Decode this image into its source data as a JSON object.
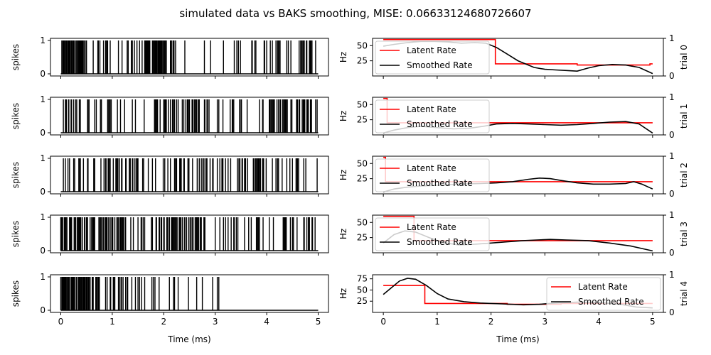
{
  "title": "simulated data vs BAKS smoothing, MISE: 0.06633124680726607",
  "chart_data": {
    "type": "line",
    "title": "simulated data vs BAKS smoothing, MISE: 0.06633124680726607",
    "spikes_ylabel": "spikes",
    "rate_ylabel": "Hz",
    "xlabel": "Time (ms)",
    "xlim": [
      -0.2,
      5.2
    ],
    "xticks": [
      0,
      1,
      2,
      3,
      4,
      5
    ],
    "spike_yticks": [
      0,
      1
    ],
    "legend": [
      "Latent Rate",
      "Smoothed Rate"
    ],
    "colors": {
      "latent": "#ff0000",
      "smoothed": "#000000",
      "spikes": "#000000"
    },
    "trials": [
      {
        "label": "trial 0",
        "twin_yticks": [
          0,
          1
        ],
        "rate_ylim": [
          0,
          62
        ],
        "rate_yticks": [
          25,
          50
        ],
        "legend_loc": "upper left",
        "spike_density": [
          [
            0,
            0.5,
            0.75
          ],
          [
            0.5,
            1.6,
            0.15
          ],
          [
            1.6,
            2.05,
            0.75
          ],
          [
            2.05,
            3.7,
            0.1
          ],
          [
            3.7,
            4.3,
            0.2
          ],
          [
            4.3,
            5,
            0.25
          ]
        ],
        "latent": [
          [
            0,
            60
          ],
          [
            2.08,
            60
          ],
          [
            2.08,
            20
          ],
          [
            3.6,
            20
          ],
          [
            3.6,
            18
          ],
          [
            4.95,
            18
          ],
          [
            4.95,
            20
          ],
          [
            5,
            20
          ]
        ],
        "smoothed": [
          [
            0,
            49
          ],
          [
            0.2,
            52
          ],
          [
            0.45,
            55
          ],
          [
            0.7,
            57
          ],
          [
            0.95,
            57
          ],
          [
            1.2,
            56
          ],
          [
            1.45,
            54
          ],
          [
            1.7,
            55
          ],
          [
            1.9,
            54
          ],
          [
            2.1,
            47
          ],
          [
            2.3,
            36
          ],
          [
            2.5,
            25
          ],
          [
            2.8,
            14
          ],
          [
            3.0,
            11
          ],
          [
            3.2,
            10
          ],
          [
            3.4,
            9
          ],
          [
            3.6,
            8
          ],
          [
            3.8,
            13
          ],
          [
            4.0,
            17
          ],
          [
            4.25,
            19
          ],
          [
            4.5,
            18
          ],
          [
            4.75,
            14
          ],
          [
            5,
            4
          ]
        ]
      },
      {
        "label": "trial 1",
        "twin_yticks": [
          0,
          1
        ],
        "rate_ylim": [
          0,
          62
        ],
        "rate_yticks": [
          25,
          50
        ],
        "legend_loc": "upper left",
        "spike_density": [
          [
            0,
            0.4,
            0.4
          ],
          [
            0.4,
            1.3,
            0.15
          ],
          [
            1.3,
            1.8,
            0.05
          ],
          [
            1.8,
            2.7,
            0.25
          ],
          [
            2.7,
            4.0,
            0.15
          ],
          [
            4.0,
            5,
            0.35
          ]
        ],
        "latent": [
          [
            0,
            60
          ],
          [
            0.07,
            60
          ],
          [
            0.07,
            20
          ],
          [
            3.3,
            20
          ],
          [
            3.3,
            20
          ],
          [
            5,
            20
          ]
        ],
        "smoothed": [
          [
            0,
            3
          ],
          [
            0.2,
            8
          ],
          [
            0.45,
            12
          ],
          [
            0.7,
            14
          ],
          [
            1.0,
            12
          ],
          [
            1.3,
            10
          ],
          [
            1.6,
            11
          ],
          [
            1.85,
            14
          ],
          [
            2.1,
            18
          ],
          [
            2.4,
            19
          ],
          [
            2.7,
            18
          ],
          [
            3.0,
            17
          ],
          [
            3.3,
            16
          ],
          [
            3.6,
            17
          ],
          [
            3.9,
            19
          ],
          [
            4.2,
            21
          ],
          [
            4.5,
            22
          ],
          [
            4.75,
            18
          ],
          [
            5,
            3
          ]
        ]
      },
      {
        "label": "trial 2",
        "twin_yticks": [
          0,
          1
        ],
        "rate_ylim": [
          0,
          62
        ],
        "rate_yticks": [
          25,
          50
        ],
        "legend_loc": "upper left",
        "spike_density": [
          [
            0,
            0.7,
            0.2
          ],
          [
            0.7,
            1.5,
            0.35
          ],
          [
            1.5,
            2.2,
            0.2
          ],
          [
            2.2,
            3.3,
            0.35
          ],
          [
            3.3,
            4.5,
            0.25
          ],
          [
            4.5,
            5,
            0.15
          ]
        ],
        "latent": [
          [
            0,
            60
          ],
          [
            0.04,
            60
          ],
          [
            0.04,
            20
          ],
          [
            5,
            20
          ]
        ],
        "smoothed": [
          [
            0,
            3
          ],
          [
            0.2,
            8
          ],
          [
            0.45,
            11
          ],
          [
            0.7,
            13
          ],
          [
            1.0,
            14
          ],
          [
            1.4,
            16
          ],
          [
            1.8,
            17
          ],
          [
            2.1,
            18
          ],
          [
            2.4,
            20
          ],
          [
            2.7,
            24
          ],
          [
            2.9,
            26
          ],
          [
            3.1,
            25
          ],
          [
            3.3,
            22
          ],
          [
            3.6,
            18
          ],
          [
            3.9,
            16
          ],
          [
            4.2,
            16
          ],
          [
            4.5,
            17
          ],
          [
            4.65,
            20
          ],
          [
            4.8,
            16
          ],
          [
            5,
            8
          ]
        ]
      },
      {
        "label": "trial 3",
        "twin_yticks": [
          0,
          1
        ],
        "rate_ylim": [
          0,
          62
        ],
        "rate_yticks": [
          25,
          50
        ],
        "legend_loc": "upper left",
        "spike_density": [
          [
            0,
            1.2,
            0.4
          ],
          [
            1.2,
            2.0,
            0.25
          ],
          [
            2.0,
            2.8,
            0.35
          ],
          [
            2.8,
            3.6,
            0.2
          ],
          [
            3.6,
            5,
            0.2
          ]
        ],
        "latent": [
          [
            0,
            60
          ],
          [
            0.57,
            60
          ],
          [
            0.57,
            20
          ],
          [
            1.4,
            20
          ],
          [
            1.4,
            20
          ],
          [
            2.8,
            20
          ],
          [
            2.8,
            20
          ],
          [
            5,
            20
          ]
        ],
        "smoothed": [
          [
            0,
            16
          ],
          [
            0.2,
            30
          ],
          [
            0.4,
            36
          ],
          [
            0.6,
            34
          ],
          [
            0.85,
            25
          ],
          [
            1.1,
            17
          ],
          [
            1.4,
            13
          ],
          [
            1.7,
            14
          ],
          [
            2.0,
            16
          ],
          [
            2.3,
            18
          ],
          [
            2.6,
            20
          ],
          [
            2.85,
            21
          ],
          [
            3.1,
            22
          ],
          [
            3.4,
            21
          ],
          [
            3.8,
            20
          ],
          [
            4.2,
            16
          ],
          [
            4.6,
            11
          ],
          [
            5,
            3
          ]
        ]
      },
      {
        "label": "trial 4",
        "twin_yticks": [
          0,
          1
        ],
        "rate_ylim": [
          0,
          84
        ],
        "rate_yticks": [
          25,
          50,
          75
        ],
        "legend_loc": "upper right",
        "spike_density": [
          [
            0,
            0.75,
            0.75
          ],
          [
            0.75,
            1.3,
            0.3
          ],
          [
            1.3,
            3.2,
            0.12
          ],
          [
            3.2,
            5,
            0.0
          ]
        ],
        "latent": [
          [
            0,
            60
          ],
          [
            0.77,
            60
          ],
          [
            0.77,
            20
          ],
          [
            2.3,
            20
          ],
          [
            2.3,
            18
          ],
          [
            3.3,
            18
          ],
          [
            3.3,
            20
          ],
          [
            5,
            20
          ]
        ],
        "smoothed": [
          [
            0,
            40
          ],
          [
            0.15,
            55
          ],
          [
            0.3,
            70
          ],
          [
            0.45,
            76
          ],
          [
            0.6,
            74
          ],
          [
            0.8,
            60
          ],
          [
            1.0,
            42
          ],
          [
            1.2,
            30
          ],
          [
            1.5,
            24
          ],
          [
            1.8,
            21
          ],
          [
            2.2,
            19
          ],
          [
            2.6,
            17
          ],
          [
            2.9,
            18
          ],
          [
            3.2,
            21
          ],
          [
            3.6,
            23
          ],
          [
            4.0,
            22
          ],
          [
            4.4,
            18
          ],
          [
            4.7,
            12
          ],
          [
            5,
            10
          ]
        ]
      }
    ]
  }
}
